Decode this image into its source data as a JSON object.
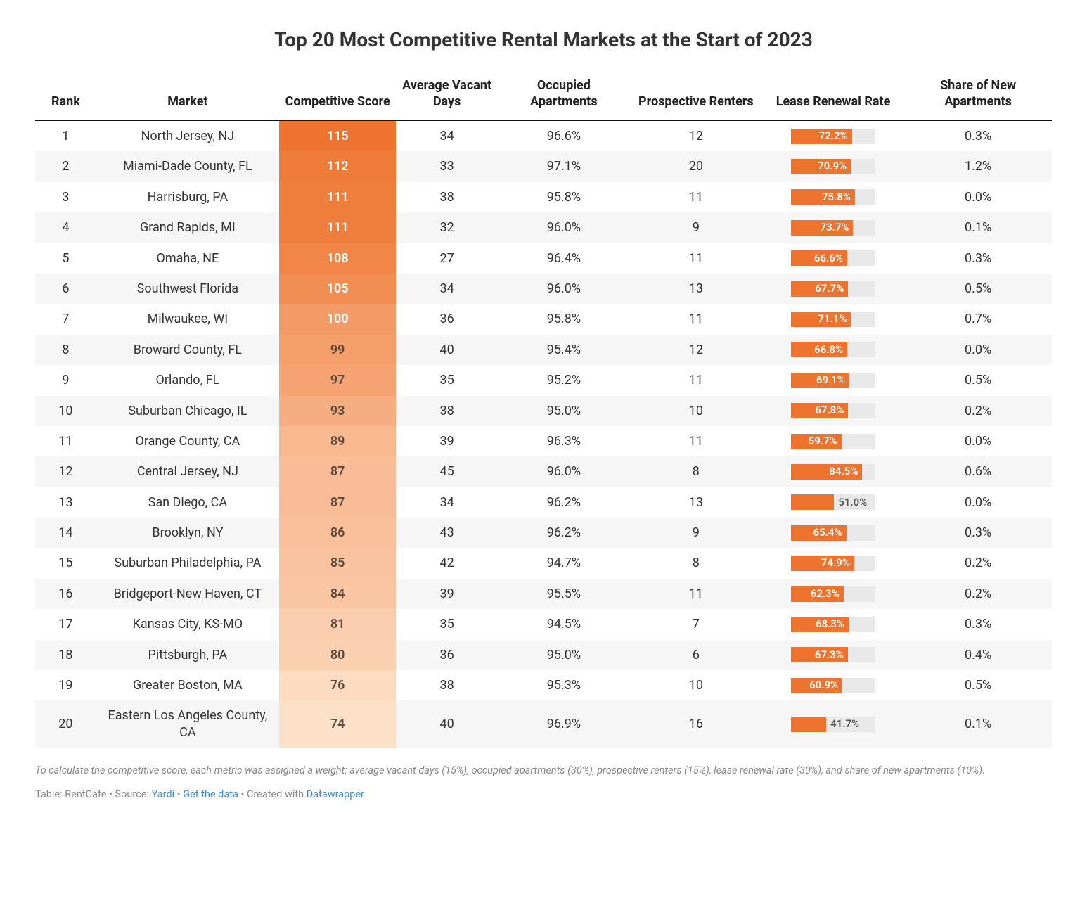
{
  "title": "Top 20 Most Competitive Rental Markets at the Start of 2023",
  "columns": [
    {
      "key": "rank",
      "label": "Rank",
      "class": "col-rank"
    },
    {
      "key": "market",
      "label": "Market",
      "class": "col-market"
    },
    {
      "key": "score",
      "label": "Competitive Score",
      "class": "col-score"
    },
    {
      "key": "vacant",
      "label": "Average Vacant Days",
      "class": "col-vacant"
    },
    {
      "key": "occ",
      "label": "Occupied Apartments",
      "class": "col-occ"
    },
    {
      "key": "renters",
      "label": "Prospective Renters",
      "class": "col-rent"
    },
    {
      "key": "lease",
      "label": "Lease Renewal Rate",
      "class": "col-lease"
    },
    {
      "key": "newapt",
      "label": "Share of New Apartments",
      "class": "col-new"
    }
  ],
  "score_heat": {
    "min_color": "#fde0c8",
    "max_color": "#ee732e",
    "text_light": "#ffffff",
    "text_dark": "#5a4a3c",
    "light_threshold": 100
  },
  "lease_bar": {
    "fill": "#ee732e",
    "track": "#e9e9e9",
    "scale_max": 100,
    "inside_threshold": 55
  },
  "rows": [
    {
      "rank": 1,
      "market": "North Jersey, NJ",
      "score": 115,
      "vacant": 34,
      "occ": "96.6%",
      "renters": 12,
      "lease": 72.2,
      "newapt": "0.3%"
    },
    {
      "rank": 2,
      "market": "Miami-Dade County, FL",
      "score": 112,
      "vacant": 33,
      "occ": "97.1%",
      "renters": 20,
      "lease": 70.9,
      "newapt": "1.2%"
    },
    {
      "rank": 3,
      "market": "Harrisburg, PA",
      "score": 111,
      "vacant": 38,
      "occ": "95.8%",
      "renters": 11,
      "lease": 75.8,
      "newapt": "0.0%"
    },
    {
      "rank": 4,
      "market": "Grand Rapids, MI",
      "score": 111,
      "vacant": 32,
      "occ": "96.0%",
      "renters": 9,
      "lease": 73.7,
      "newapt": "0.1%"
    },
    {
      "rank": 5,
      "market": "Omaha, NE",
      "score": 108,
      "vacant": 27,
      "occ": "96.4%",
      "renters": 11,
      "lease": 66.6,
      "newapt": "0.3%"
    },
    {
      "rank": 6,
      "market": "Southwest Florida",
      "score": 105,
      "vacant": 34,
      "occ": "96.0%",
      "renters": 13,
      "lease": 67.7,
      "newapt": "0.5%"
    },
    {
      "rank": 7,
      "market": "Milwaukee, WI",
      "score": 100,
      "vacant": 36,
      "occ": "95.8%",
      "renters": 11,
      "lease": 71.1,
      "newapt": "0.7%"
    },
    {
      "rank": 8,
      "market": "Broward County, FL",
      "score": 99,
      "vacant": 40,
      "occ": "95.4%",
      "renters": 12,
      "lease": 66.8,
      "newapt": "0.0%"
    },
    {
      "rank": 9,
      "market": "Orlando, FL",
      "score": 97,
      "vacant": 35,
      "occ": "95.2%",
      "renters": 11,
      "lease": 69.1,
      "newapt": "0.5%"
    },
    {
      "rank": 10,
      "market": "Suburban Chicago, IL",
      "score": 93,
      "vacant": 38,
      "occ": "95.0%",
      "renters": 10,
      "lease": 67.8,
      "newapt": "0.2%"
    },
    {
      "rank": 11,
      "market": "Orange County, CA",
      "score": 89,
      "vacant": 39,
      "occ": "96.3%",
      "renters": 11,
      "lease": 59.7,
      "newapt": "0.0%"
    },
    {
      "rank": 12,
      "market": "Central Jersey, NJ",
      "score": 87,
      "vacant": 45,
      "occ": "96.0%",
      "renters": 8,
      "lease": 84.5,
      "newapt": "0.6%"
    },
    {
      "rank": 13,
      "market": "San Diego, CA",
      "score": 87,
      "vacant": 34,
      "occ": "96.2%",
      "renters": 13,
      "lease": 51.0,
      "newapt": "0.0%"
    },
    {
      "rank": 14,
      "market": "Brooklyn, NY",
      "score": 86,
      "vacant": 43,
      "occ": "96.2%",
      "renters": 9,
      "lease": 65.4,
      "newapt": "0.3%"
    },
    {
      "rank": 15,
      "market": "Suburban Philadelphia, PA",
      "score": 85,
      "vacant": 42,
      "occ": "94.7%",
      "renters": 8,
      "lease": 74.9,
      "newapt": "0.2%"
    },
    {
      "rank": 16,
      "market": "Bridgeport-New Haven, CT",
      "score": 84,
      "vacant": 39,
      "occ": "95.5%",
      "renters": 11,
      "lease": 62.3,
      "newapt": "0.2%"
    },
    {
      "rank": 17,
      "market": "Kansas City, KS-MO",
      "score": 81,
      "vacant": 35,
      "occ": "94.5%",
      "renters": 7,
      "lease": 68.3,
      "newapt": "0.3%"
    },
    {
      "rank": 18,
      "market": "Pittsburgh, PA",
      "score": 80,
      "vacant": 36,
      "occ": "95.0%",
      "renters": 6,
      "lease": 67.3,
      "newapt": "0.4%"
    },
    {
      "rank": 19,
      "market": "Greater Boston, MA",
      "score": 76,
      "vacant": 38,
      "occ": "95.3%",
      "renters": 10,
      "lease": 60.9,
      "newapt": "0.5%"
    },
    {
      "rank": 20,
      "market": "Eastern Los Angeles County, CA",
      "score": 74,
      "vacant": 40,
      "occ": "96.9%",
      "renters": 16,
      "lease": 41.7,
      "newapt": "0.1%"
    }
  ],
  "footnote": "To calculate the competitive score, each metric was assigned a weight: average vacant days (15%), occupied apartments (30%), prospective renters (15%), lease renewal rate (30%), and share of new apartments (10%).",
  "credits": {
    "prefix": "Table: RentCafe • Source: ",
    "source_link": "Yardi",
    "sep1": " • ",
    "data_link": "Get the data",
    "sep2": " • Created with ",
    "tool_link": "Datawrapper"
  }
}
